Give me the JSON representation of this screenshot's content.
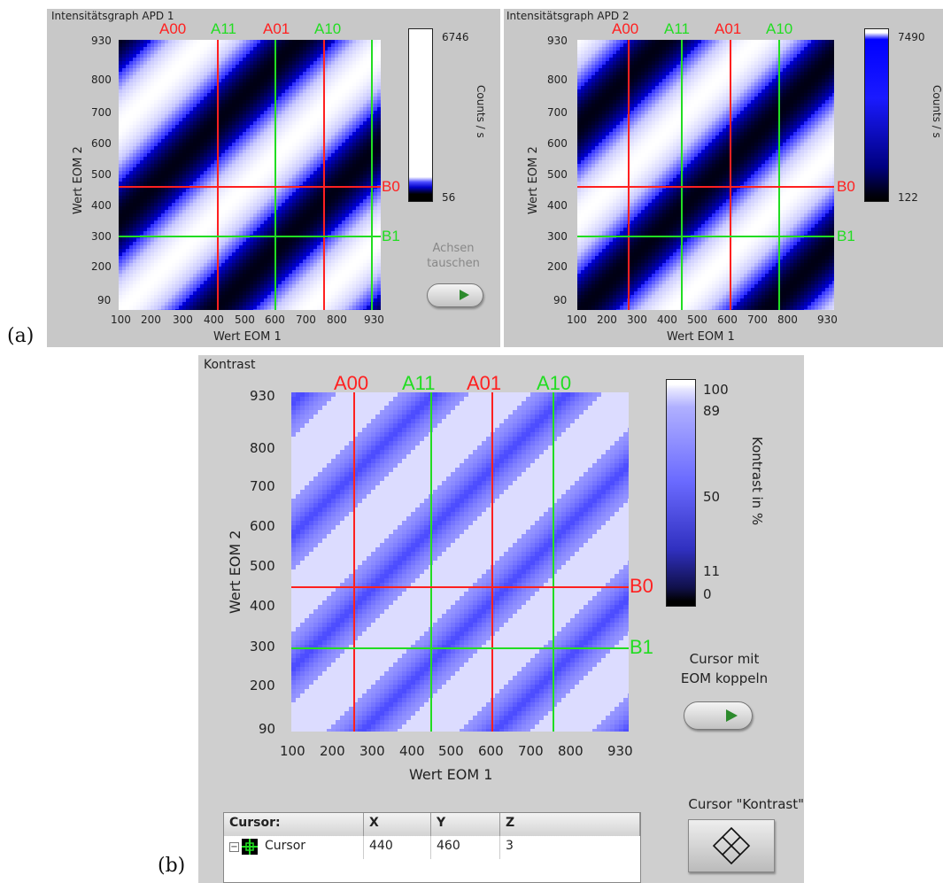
{
  "panel_a": {
    "label": "(a)",
    "graph1": {
      "title": "Intensitätsgraph APD 1",
      "xlabel": "Wert EOM 1",
      "ylabel": "Wert EOM 2",
      "xticks": [
        "100",
        "200",
        "300",
        "400",
        "500",
        "600",
        "700",
        "800",
        "930"
      ],
      "yticks": [
        "930",
        "800",
        "700",
        "600",
        "500",
        "400",
        "300",
        "200",
        "90"
      ],
      "cursors_x": [
        {
          "name": "A00",
          "color": "red"
        },
        {
          "name": "A11",
          "color": "green"
        },
        {
          "name": "A01",
          "color": "red"
        },
        {
          "name": "A10",
          "color": "green"
        }
      ],
      "cursors_y": [
        {
          "name": "B0",
          "color": "red"
        },
        {
          "name": "B1",
          "color": "green"
        }
      ],
      "scale": {
        "max": "6746",
        "min": "56",
        "label": "Counts / s",
        "style": "white-blue-black"
      }
    },
    "graph2": {
      "title": "Intensitätsgraph APD 2",
      "xlabel": "Wert EOM 1",
      "ylabel": "Wert EOM 2",
      "xticks": [
        "100",
        "200",
        "300",
        "400",
        "500",
        "600",
        "700",
        "800",
        "930"
      ],
      "yticks": [
        "930",
        "800",
        "700",
        "600",
        "500",
        "400",
        "300",
        "200",
        "90"
      ],
      "cursors_x": [
        {
          "name": "A00",
          "color": "red"
        },
        {
          "name": "A11",
          "color": "green"
        },
        {
          "name": "A01",
          "color": "red"
        },
        {
          "name": "A10",
          "color": "green"
        }
      ],
      "cursors_y": [
        {
          "name": "B0",
          "color": "red"
        },
        {
          "name": "B1",
          "color": "green"
        }
      ],
      "scale": {
        "max": "7490",
        "min": "122",
        "label": "Counts / s",
        "style": "blue-black"
      }
    },
    "swap_button": {
      "label_line1": "Achsen",
      "label_line2": "tauschen"
    }
  },
  "panel_b": {
    "label": "(b)",
    "title": "Kontrast",
    "xlabel": "Wert EOM 1",
    "ylabel": "Wert EOM 2",
    "xticks": [
      "100",
      "200",
      "300",
      "400",
      "500",
      "600",
      "700",
      "800",
      "930"
    ],
    "yticks": [
      "930",
      "800",
      "700",
      "600",
      "500",
      "400",
      "300",
      "200",
      "90"
    ],
    "cursors_x": [
      {
        "name": "A00",
        "color": "red"
      },
      {
        "name": "A11",
        "color": "green"
      },
      {
        "name": "A01",
        "color": "red"
      },
      {
        "name": "A10",
        "color": "green"
      }
    ],
    "cursors_y": [
      {
        "name": "B0",
        "color": "red"
      },
      {
        "name": "B1",
        "color": "green"
      }
    ],
    "scale": {
      "ticks": [
        "100",
        "89",
        "50",
        "11",
        "0"
      ],
      "label": "Kontrast in %"
    },
    "couple_button": {
      "label_line1": "Cursor mit",
      "label_line2": "EOM koppeln"
    },
    "cursor_button": {
      "label": "Cursor \"Kontrast\""
    },
    "cursor_table": {
      "headers": [
        "Cursor:",
        "X",
        "Y",
        "Z"
      ],
      "row": {
        "name": "Cursor",
        "x": "440",
        "y": "460",
        "z": "3"
      }
    }
  },
  "colors": {
    "red_cursor": "#ff2020",
    "green_cursor": "#22dd22",
    "panel_bg": "#c8c8c8"
  }
}
